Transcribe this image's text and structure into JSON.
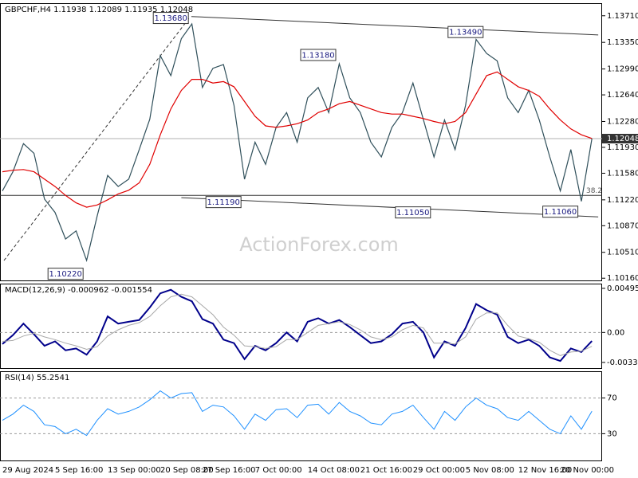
{
  "watermark": "ActionForex.com",
  "chart_data": [
    {
      "type": "line",
      "title": "GBPCHF,H4  1.11938 1.12089 1.11935 1.12048",
      "series": [
        {
          "color": "#2f4f5a",
          "values": [
            1.1134,
            1.116,
            1.1198,
            1.1185,
            1.1123,
            1.1105,
            1.1069,
            1.108,
            1.104,
            1.11,
            1.1155,
            1.114,
            1.115,
            1.119,
            1.1231,
            1.1317,
            1.129,
            1.134,
            1.136,
            1.1274,
            1.13,
            1.1305,
            1.125,
            1.115,
            1.12,
            1.117,
            1.122,
            1.124,
            1.12,
            1.126,
            1.1274,
            1.124,
            1.1306,
            1.126,
            1.124,
            1.12,
            1.118,
            1.122,
            1.124,
            1.128,
            1.123,
            1.118,
            1.123,
            1.119,
            1.125,
            1.1339,
            1.132,
            1.131,
            1.126,
            1.124,
            1.127,
            1.123,
            1.118,
            1.1134,
            1.119,
            1.112,
            1.12048
          ]
        },
        {
          "color": "#e00000",
          "values": [
            1.116,
            1.1162,
            1.1163,
            1.116,
            1.115,
            1.114,
            1.1128,
            1.1118,
            1.1112,
            1.1115,
            1.1122,
            1.113,
            1.1135,
            1.1145,
            1.117,
            1.121,
            1.1245,
            1.127,
            1.1285,
            1.1285,
            1.128,
            1.1282,
            1.1275,
            1.1255,
            1.1235,
            1.1222,
            1.122,
            1.1222,
            1.1225,
            1.123,
            1.124,
            1.1245,
            1.1252,
            1.1255,
            1.125,
            1.1245,
            1.124,
            1.1238,
            1.1238,
            1.1235,
            1.1232,
            1.1228,
            1.1225,
            1.1228,
            1.124,
            1.1265,
            1.129,
            1.1295,
            1.1285,
            1.1275,
            1.127,
            1.1262,
            1.1245,
            1.123,
            1.1218,
            1.121,
            1.1205
          ]
        }
      ],
      "ylim": [
        1.1013,
        1.1388
      ],
      "yticks": [
        {
          "value": 1.1371,
          "label": "1.13710"
        },
        {
          "value": 1.1335,
          "label": "1.13350"
        },
        {
          "value": 1.1299,
          "label": "1.12990"
        },
        {
          "value": 1.1264,
          "label": "1.12640"
        },
        {
          "value": 1.1228,
          "label": "1.12280"
        },
        {
          "value": 1.1193,
          "label": "1.11930"
        },
        {
          "value": 1.1158,
          "label": "1.11580"
        },
        {
          "value": 1.1122,
          "label": "1.11220"
        },
        {
          "value": 1.1087,
          "label": "1.10870"
        },
        {
          "value": 1.1051,
          "label": "1.10510"
        },
        {
          "value": 1.1016,
          "label": "1.10160"
        }
      ],
      "current_price": {
        "value": 1.12048,
        "label": "1.12048"
      },
      "annotations": [
        {
          "label": "1.13680",
          "value": 1.1368,
          "x": 16
        },
        {
          "label": "1.13490",
          "value": 1.1349,
          "x": 44
        },
        {
          "label": "1.13180",
          "value": 1.1318,
          "x": 30
        },
        {
          "label": "1.11190",
          "value": 1.1119,
          "x": 21
        },
        {
          "label": "1.11050",
          "value": 1.1105,
          "x": 39
        },
        {
          "label": "1.11060",
          "value": 1.1106,
          "x": 53
        },
        {
          "label": "1.10220",
          "value": 1.1022,
          "x": 6
        }
      ],
      "fib_level": {
        "text": "38.2",
        "price": 1.1128
      },
      "trendlines": [
        {
          "x": [
            17.95,
            56.6
          ],
          "y": [
            1.137,
            1.1345
          ],
          "style": "solid"
        },
        {
          "x": [
            17,
            56.6
          ],
          "y": [
            1.1125,
            1.1099
          ],
          "style": "solid"
        },
        {
          "x": [
            0.15,
            17.8
          ],
          "y": [
            1.104,
            1.1369
          ],
          "style": "dashed"
        }
      ]
    },
    {
      "type": "line",
      "title": "MACD(12,26,9) -0.000962 -0.001554",
      "series": [
        {
          "color": "#00008b",
          "width": 2,
          "values": [
            -0.0013,
            -0.0003,
            0.001,
            -0.0002,
            -0.0015,
            -0.001,
            -0.002,
            -0.0018,
            -0.0025,
            -0.001,
            0.0018,
            0.001,
            0.0012,
            0.0014,
            0.0028,
            0.0044,
            0.0048,
            0.004,
            0.0035,
            0.0015,
            0.001,
            -0.0008,
            -0.0012,
            -0.003,
            -0.0015,
            -0.002,
            -0.0012,
            0,
            -0.001,
            0.0012,
            0.0016,
            0.001,
            0.0014,
            0.0006,
            -0.0003,
            -0.0012,
            -0.001,
            -0.0002,
            0.001,
            0.0012,
            0,
            -0.0028,
            -0.001,
            -0.0015,
            0.0005,
            0.0032,
            0.0025,
            0.002,
            -0.0005,
            -0.0012,
            -0.0008,
            -0.0015,
            -0.0028,
            -0.0032,
            -0.0018,
            -0.0022,
            -0.000962
          ]
        },
        {
          "color": "#a8a8a8",
          "width": 1,
          "values": [
            -0.001,
            -0.0009,
            -0.0004,
            -0.0001,
            -0.0005,
            -0.0008,
            -0.0012,
            -0.0015,
            -0.0019,
            -0.0016,
            -0.0004,
            0.0003,
            0.0008,
            0.0011,
            0.0018,
            0.003,
            0.004,
            0.0043,
            0.004,
            0.003,
            0.002,
            0.0006,
            -0.0003,
            -0.0015,
            -0.0016,
            -0.0018,
            -0.0016,
            -0.0008,
            -0.0008,
            0,
            0.0008,
            0.001,
            0.0012,
            0.0009,
            0.0003,
            -0.0005,
            -0.0008,
            -0.0005,
            0.0003,
            0.0008,
            0.0005,
            -0.0012,
            -0.0012,
            -0.0013,
            -0.0005,
            0.0015,
            0.0022,
            0.0022,
            0.0008,
            -0.0004,
            -0.0007,
            -0.0011,
            -0.002,
            -0.0026,
            -0.0022,
            -0.0021,
            -0.001554
          ]
        }
      ],
      "ylim": [
        -0.004,
        0.00549
      ],
      "yticks": [
        0.004957,
        {
          "value": 0,
          "label": "0.00"
        },
        -0.003368
      ],
      "zero_line": true
    },
    {
      "type": "line",
      "title": "RSI(14) 55.2541",
      "series": [
        {
          "color": "#1e90ff",
          "width": 1,
          "values": [
            45,
            52,
            62,
            55,
            40,
            38,
            30,
            35,
            28,
            45,
            58,
            52,
            55,
            60,
            68,
            78,
            70,
            75,
            76,
            55,
            62,
            60,
            50,
            35,
            52,
            45,
            57,
            58,
            48,
            62,
            63,
            52,
            65,
            55,
            50,
            42,
            40,
            52,
            55,
            62,
            48,
            35,
            55,
            45,
            60,
            70,
            62,
            58,
            48,
            45,
            55,
            45,
            35,
            30,
            50,
            35,
            55.2541
          ]
        }
      ],
      "ylim": [
        0,
        100
      ],
      "yticks": [
        70,
        30
      ],
      "grid": true,
      "categories": [
        "29 Aug 2024",
        null,
        null,
        null,
        null,
        "5 Sep 16:00",
        null,
        null,
        null,
        null,
        "13 Sep 00:00",
        null,
        null,
        null,
        null,
        "20 Sep 08:00",
        null,
        null,
        null,
        "27 Sep 16:00",
        null,
        null,
        null,
        null,
        "7 Oct 00:00",
        null,
        null,
        null,
        null,
        "14 Oct 08:00",
        null,
        null,
        null,
        null,
        "21 Oct 16:00",
        null,
        null,
        null,
        null,
        "29 Oct 00:00",
        null,
        null,
        null,
        null,
        "5 Nov 08:00",
        null,
        null,
        null,
        null,
        "12 Nov 16:00",
        null,
        null,
        null,
        "20 Nov 00:00",
        null,
        null,
        null
      ]
    }
  ]
}
